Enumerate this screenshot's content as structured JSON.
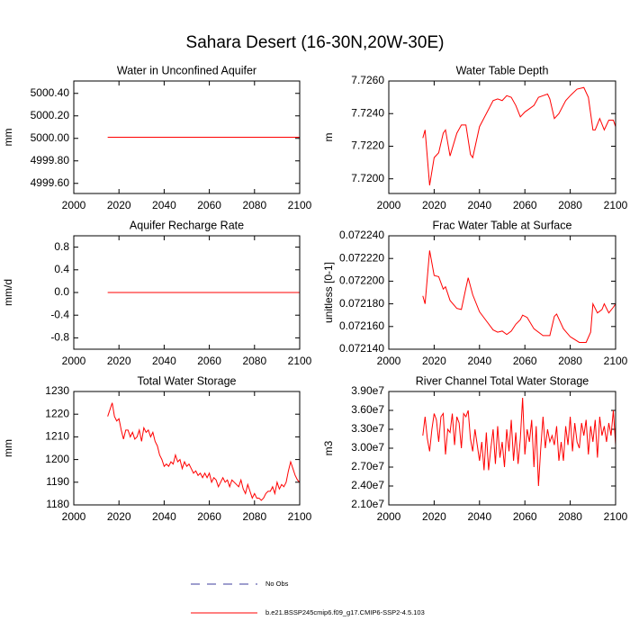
{
  "title": "Sahara Desert (16-30N,20W-30E)",
  "legend": [
    {
      "name": "No Obs",
      "color": "#3c3c9c",
      "dash": true
    },
    {
      "name": "b.e21.BSSP245cmip6.f09_g17.CMIP6-SSP2-4.5.103",
      "color": "#ff0000",
      "dash": false
    }
  ],
  "chart_data": [
    {
      "type": "line",
      "title": "Water in Unconfined Aquifer",
      "ylabel": "mm",
      "color": "#ff0000",
      "xlim": [
        2000,
        2100
      ],
      "xticks": [
        2000,
        2020,
        2040,
        2060,
        2080,
        2100
      ],
      "ylim": [
        4999.51,
        5000.51
      ],
      "yticks": [
        {
          "value": 4999.6,
          "label": "4999.60"
        },
        {
          "value": 4999.8,
          "label": "4999.80"
        },
        {
          "value": 5000,
          "label": "5000.00"
        },
        {
          "value": 5000.2,
          "label": "5000.20"
        },
        {
          "value": 5000.4,
          "label": "5000.40"
        }
      ],
      "x": [
        2015,
        2100
      ],
      "values": [
        5000.01,
        5000.01
      ]
    },
    {
      "type": "line",
      "title": "Water Table Depth",
      "ylabel": "m",
      "color": "#ff0000",
      "xlim": [
        2000,
        2100
      ],
      "xticks": [
        2000,
        2020,
        2040,
        2060,
        2080,
        2100
      ],
      "ylim": [
        7.7191,
        7.726
      ],
      "yticks": [
        {
          "value": 7.72,
          "label": "7.7200"
        },
        {
          "value": 7.722,
          "label": "7.7220"
        },
        {
          "value": 7.724,
          "label": "7.7240"
        },
        {
          "value": 7.726,
          "label": "7.7260"
        }
      ],
      "x": [
        2015,
        2016,
        2018,
        2020,
        2022,
        2024,
        2025,
        2027,
        2030,
        2032,
        2034,
        2036,
        2037,
        2040,
        2043,
        2046,
        2048,
        2050,
        2052,
        2054,
        2056,
        2058,
        2060,
        2062,
        2064,
        2066,
        2068,
        2070,
        2071,
        2073,
        2075,
        2078,
        2080,
        2083,
        2086,
        2088,
        2090,
        2091,
        2093,
        2095,
        2097,
        2099,
        2100
      ],
      "values": [
        7.7225,
        7.723,
        7.7196,
        7.7213,
        7.7216,
        7.7228,
        7.723,
        7.7214,
        7.7228,
        7.7233,
        7.7233,
        7.7215,
        7.7213,
        7.7232,
        7.724,
        7.7248,
        7.7249,
        7.7248,
        7.7251,
        7.725,
        7.7245,
        7.7238,
        7.7241,
        7.7243,
        7.7245,
        7.725,
        7.7251,
        7.7252,
        7.7249,
        7.7237,
        7.724,
        7.7248,
        7.7251,
        7.7255,
        7.7256,
        7.725,
        7.723,
        7.723,
        7.7237,
        7.723,
        7.7236,
        7.7236,
        7.7232
      ]
    },
    {
      "type": "line",
      "title": "Aquifer Recharge Rate",
      "ylabel": "mm/d",
      "color": "#ff0000",
      "xlim": [
        2000,
        2100
      ],
      "xticks": [
        2000,
        2020,
        2040,
        2060,
        2080,
        2100
      ],
      "ylim": [
        -1,
        1
      ],
      "yticks": [
        -0.8,
        -0.4,
        {
          "value": 0,
          "label": "0.0"
        },
        0.4,
        0.8
      ],
      "x": [
        2015,
        2100
      ],
      "values": [
        0,
        0
      ]
    },
    {
      "type": "line",
      "title": "Frac Water Table at Surface",
      "ylabel": "unitless [0-1]",
      "color": "#ff0000",
      "xlim": [
        2000,
        2100
      ],
      "xticks": [
        2000,
        2020,
        2040,
        2060,
        2080,
        2100
      ],
      "ylim": [
        0.07214,
        0.07224
      ],
      "yticks": [
        {
          "value": 0.07214,
          "label": "0.072140"
        },
        {
          "value": 0.07216,
          "label": "0.072160"
        },
        {
          "value": 0.07218,
          "label": "0.072180"
        },
        {
          "value": 0.0722,
          "label": "0.072200"
        },
        {
          "value": 0.07222,
          "label": "0.072220"
        },
        {
          "value": 0.07224,
          "label": "0.072240"
        }
      ],
      "x": [
        2015,
        2016,
        2018,
        2020,
        2022,
        2024,
        2025,
        2027,
        2030,
        2032,
        2034,
        2035,
        2037,
        2040,
        2043,
        2046,
        2048,
        2050,
        2052,
        2054,
        2056,
        2058,
        2059,
        2061,
        2064,
        2068,
        2071,
        2073,
        2074,
        2077,
        2080,
        2084,
        2087,
        2089,
        2090,
        2092,
        2094,
        2095,
        2097,
        2099,
        2100
      ],
      "values": [
        0.072187,
        0.07218,
        0.072227,
        0.072205,
        0.072204,
        0.072193,
        0.072195,
        0.072183,
        0.072176,
        0.072175,
        0.072194,
        0.072203,
        0.072188,
        0.072173,
        0.072165,
        0.072157,
        0.072155,
        0.072156,
        0.072153,
        0.072156,
        0.072162,
        0.072166,
        0.07217,
        0.072168,
        0.072158,
        0.072152,
        0.072152,
        0.072169,
        0.072171,
        0.072158,
        0.072151,
        0.072146,
        0.072146,
        0.072155,
        0.07218,
        0.072172,
        0.072175,
        0.07218,
        0.072172,
        0.072177,
        0.07218
      ]
    },
    {
      "type": "line",
      "title": "Total Water Storage",
      "ylabel": "mm",
      "color": "#ff0000",
      "xlim": [
        2000,
        2100
      ],
      "xticks": [
        2000,
        2020,
        2040,
        2060,
        2080,
        2100
      ],
      "ylim": [
        1180,
        1230
      ],
      "yticks": [
        1180,
        1190,
        1200,
        1210,
        1220,
        1230
      ],
      "x": [
        2015,
        2016,
        2017,
        2018,
        2019,
        2020,
        2021,
        2022,
        2023,
        2024,
        2025,
        2026,
        2027,
        2028,
        2029,
        2030,
        2031,
        2032,
        2033,
        2034,
        2035,
        2036,
        2037,
        2038,
        2039,
        2040,
        2041,
        2042,
        2043,
        2044,
        2045,
        2046,
        2047,
        2048,
        2049,
        2050,
        2051,
        2052,
        2053,
        2054,
        2055,
        2056,
        2057,
        2058,
        2059,
        2060,
        2061,
        2062,
        2063,
        2064,
        2065,
        2066,
        2067,
        2068,
        2069,
        2070,
        2071,
        2072,
        2073,
        2074,
        2075,
        2076,
        2077,
        2078,
        2079,
        2080,
        2081,
        2082,
        2083,
        2084,
        2085,
        2086,
        2087,
        2088,
        2089,
        2090,
        2091,
        2092,
        2093,
        2094,
        2095,
        2096,
        2097,
        2098,
        2099,
        2100
      ],
      "values": [
        1219,
        1222,
        1225,
        1219,
        1217,
        1218,
        1213,
        1209,
        1213,
        1213,
        1210,
        1212,
        1209,
        1210,
        1213,
        1208,
        1214,
        1212,
        1213,
        1210,
        1212,
        1208,
        1206,
        1202,
        1200,
        1197,
        1198,
        1197,
        1199,
        1198,
        1202,
        1199,
        1200,
        1196,
        1199,
        1197,
        1198,
        1196,
        1194,
        1195,
        1193,
        1194,
        1192,
        1194,
        1192,
        1194,
        1190,
        1192,
        1191,
        1188,
        1190,
        1192,
        1190,
        1191,
        1188,
        1191,
        1190,
        1189,
        1188,
        1191,
        1187,
        1185,
        1189,
        1186,
        1183,
        1185,
        1183,
        1183,
        1182,
        1183,
        1185,
        1186,
        1186,
        1188,
        1185,
        1190,
        1187,
        1189,
        1188,
        1190,
        1195,
        1199,
        1196,
        1193,
        1191,
        1190
      ]
    },
    {
      "type": "line",
      "title": "River Channel Total Water Storage",
      "ylabel": "m3",
      "color": "#ff0000",
      "xlim": [
        2000,
        2100
      ],
      "xticks": [
        2000,
        2020,
        2040,
        2060,
        2080,
        2100
      ],
      "ylim": [
        21000000,
        39000000
      ],
      "yticks": [
        {
          "value": 21000000,
          "label": "2.10e7"
        },
        {
          "value": 24000000,
          "label": "2.40e7"
        },
        {
          "value": 27000000,
          "label": "2.70e7"
        },
        {
          "value": 30000000,
          "label": "3.00e7"
        },
        {
          "value": 33000000,
          "label": "3.30e7"
        },
        {
          "value": 36000000,
          "label": "3.60e7"
        },
        {
          "value": 39000000,
          "label": "3.90e7"
        }
      ],
      "x": [
        2015,
        2016,
        2017,
        2018,
        2019,
        2020,
        2021,
        2022,
        2023,
        2024,
        2025,
        2026,
        2027,
        2028,
        2029,
        2030,
        2031,
        2032,
        2033,
        2034,
        2035,
        2036,
        2037,
        2038,
        2039,
        2040,
        2041,
        2042,
        2043,
        2044,
        2045,
        2046,
        2047,
        2048,
        2049,
        2050,
        2051,
        2052,
        2053,
        2054,
        2055,
        2056,
        2057,
        2058,
        2059,
        2060,
        2061,
        2062,
        2063,
        2064,
        2065,
        2066,
        2067,
        2068,
        2069,
        2070,
        2071,
        2072,
        2073,
        2074,
        2075,
        2076,
        2077,
        2078,
        2079,
        2080,
        2081,
        2082,
        2083,
        2084,
        2085,
        2086,
        2087,
        2088,
        2089,
        2090,
        2091,
        2092,
        2093,
        2094,
        2095,
        2096,
        2097,
        2098,
        2099,
        2100
      ],
      "values": [
        32000000,
        35000000,
        31500000,
        29500000,
        33000000,
        35500000,
        34500000,
        31000000,
        35000000,
        35500000,
        29000000,
        33000000,
        32500000,
        35500000,
        30500000,
        35000000,
        34000000,
        30000000,
        35500000,
        35000000,
        36000000,
        31500000,
        29500000,
        33000000,
        30500000,
        28000000,
        31000000,
        26500000,
        32500000,
        26500000,
        30000000,
        33000000,
        27500000,
        33500000,
        28500000,
        31000000,
        27000000,
        33000000,
        29500000,
        34500000,
        28000000,
        32500000,
        27500000,
        31500000,
        38000000,
        29000000,
        33000000,
        31000000,
        34500000,
        27000000,
        33500000,
        24000000,
        30000000,
        35000000,
        30000000,
        33000000,
        31000000,
        32000000,
        30500000,
        33500000,
        28000000,
        31000000,
        28000000,
        33500000,
        30500000,
        35000000,
        29500000,
        34000000,
        31000000,
        30000000,
        34000000,
        32000000,
        34500000,
        29000000,
        33500000,
        31000000,
        34500000,
        28500000,
        35000000,
        32000000,
        33500000,
        31000000,
        34000000,
        32000000,
        36000000,
        30500000
      ]
    }
  ]
}
